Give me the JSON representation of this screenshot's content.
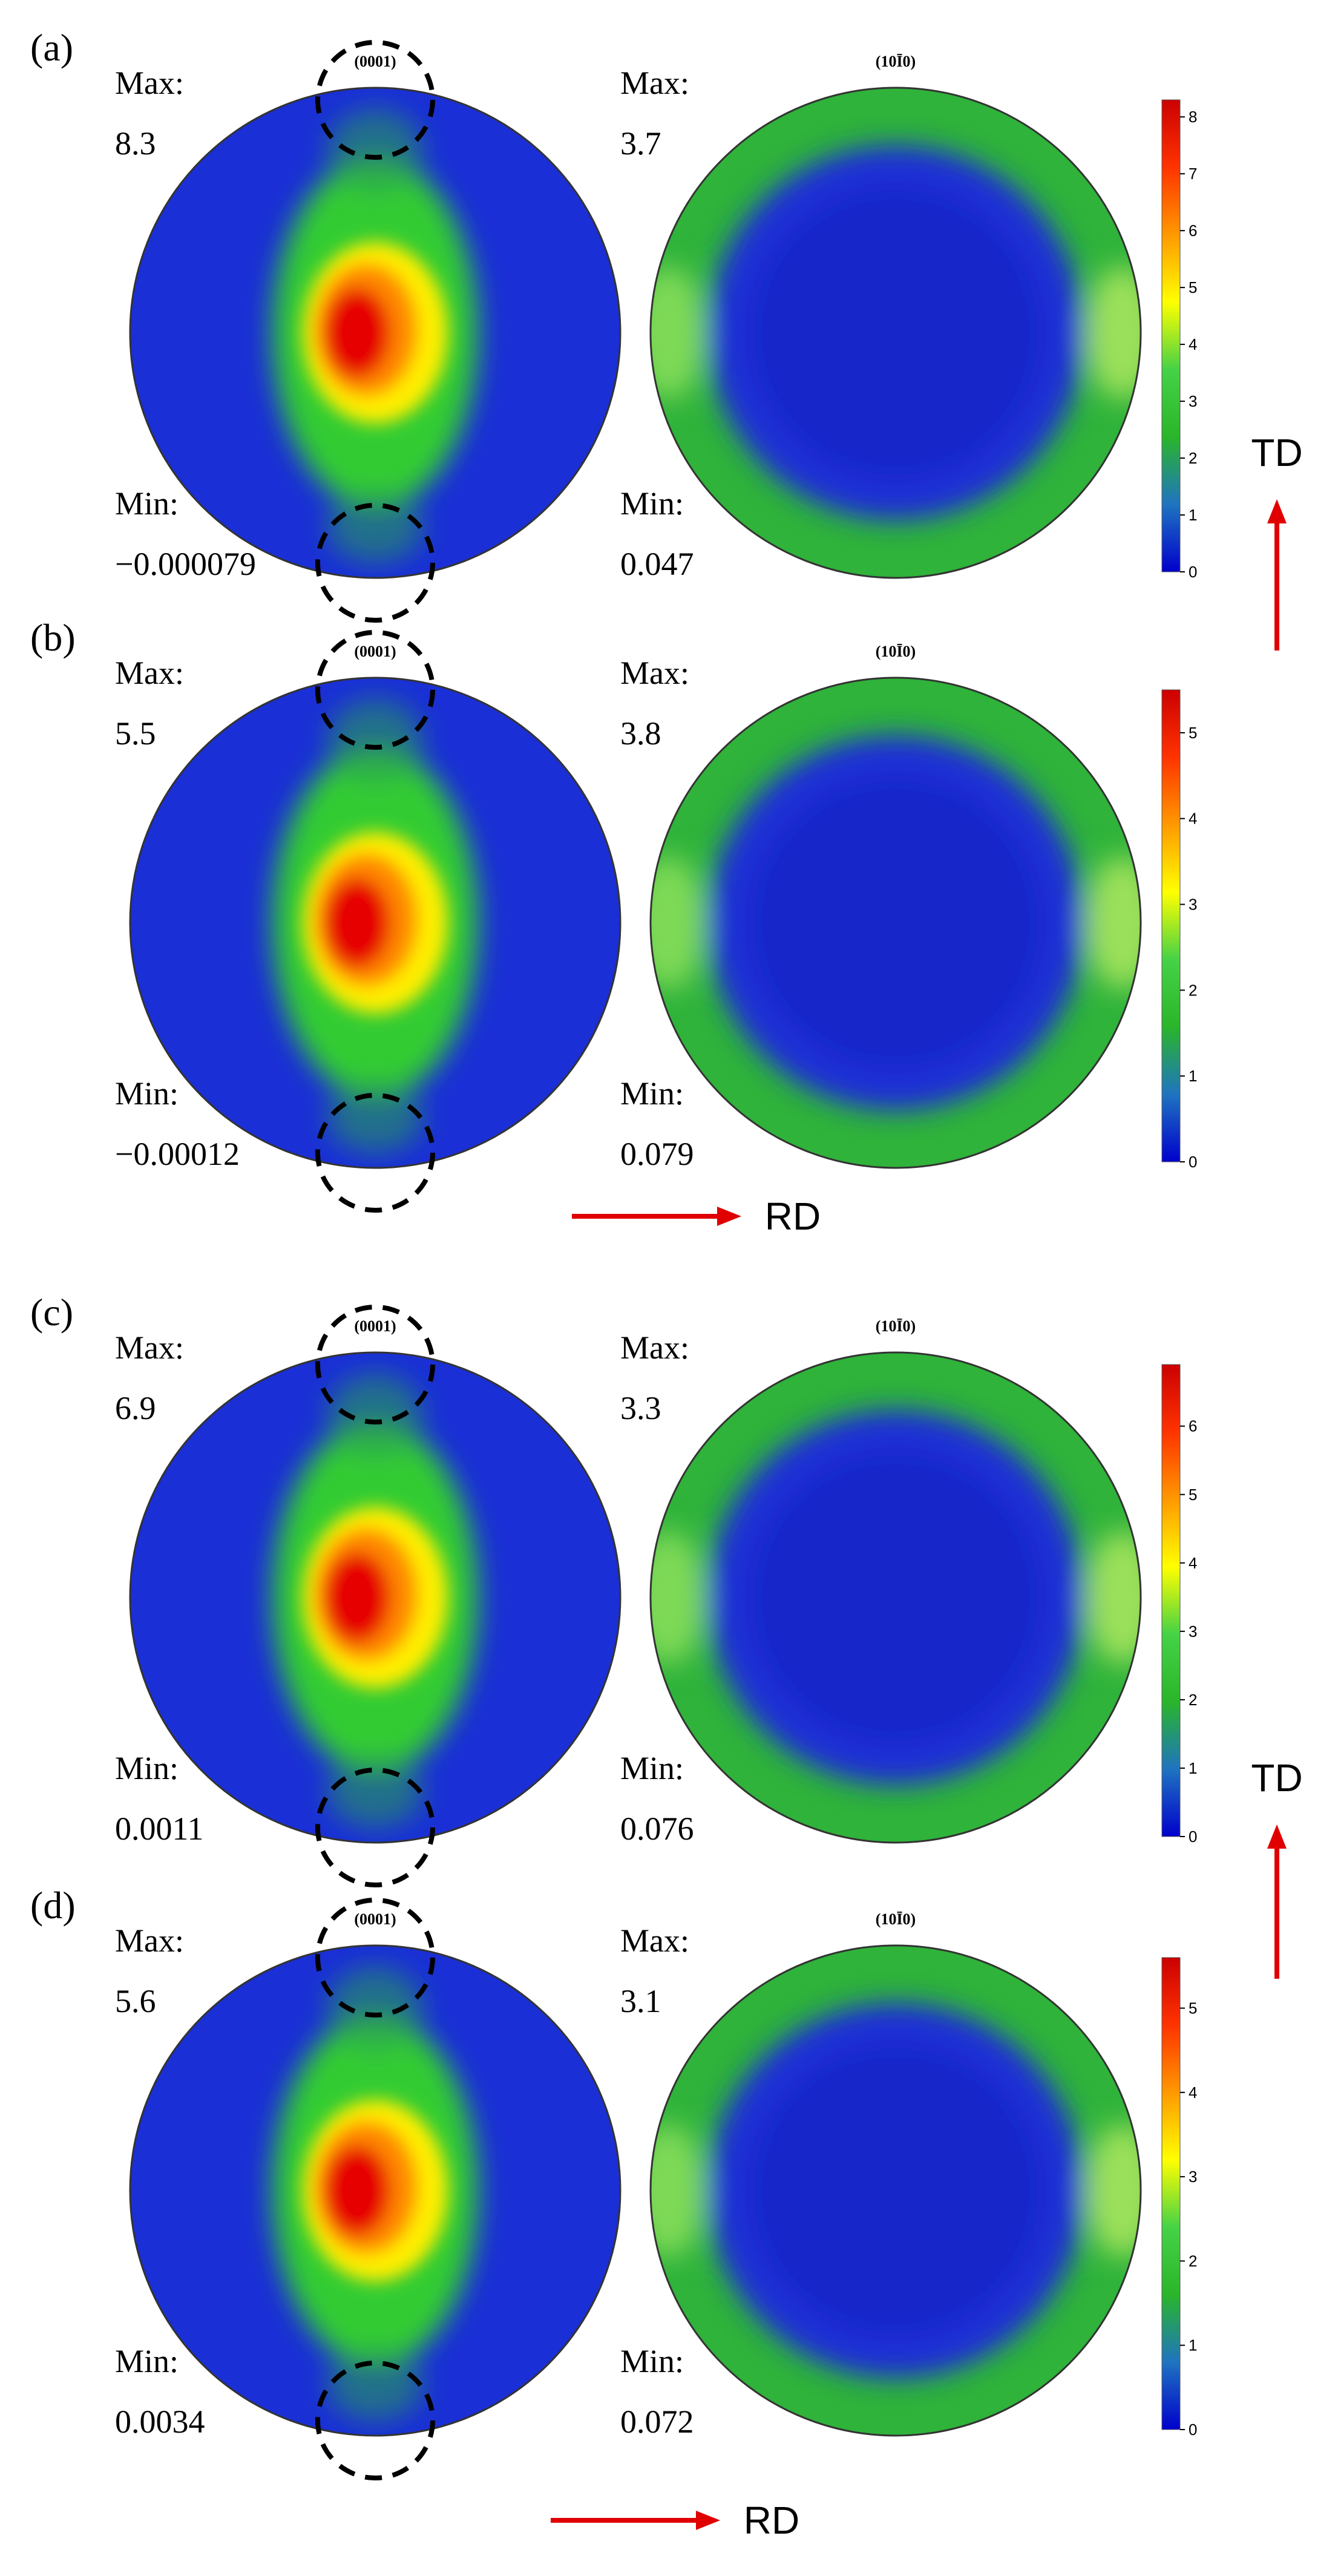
{
  "chart_data": {
    "type": "heatmap",
    "panels": [
      {
        "label": "(a)",
        "figures": [
          {
            "title": "(0001)",
            "max_label": "Max:",
            "max": "8.3",
            "min_label": "Min:",
            "min": "−0.000079"
          },
          {
            "title": "(10Ī0)",
            "max_label": "Max:",
            "max": "3.7",
            "min_label": "Min:",
            "min": "0.047"
          }
        ],
        "colorbar": {
          "range": [
            0,
            8.3
          ],
          "ticks": [
            "0",
            "1",
            "2",
            "3",
            "4",
            "5",
            "6",
            "7",
            "8"
          ]
        }
      },
      {
        "label": "(b)",
        "figures": [
          {
            "title": "(0001)",
            "max_label": "Max:",
            "max": "5.5",
            "min_label": "Min:",
            "min": "−0.00012"
          },
          {
            "title": "(10Ī0)",
            "max_label": "Max:",
            "max": "3.8",
            "min_label": "Min:",
            "min": "0.079"
          }
        ],
        "colorbar": {
          "range": [
            0,
            5.5
          ],
          "ticks": [
            "0",
            "1",
            "2",
            "3",
            "4",
            "5"
          ]
        }
      },
      {
        "label": "(c)",
        "figures": [
          {
            "title": "(0001)",
            "max_label": "Max:",
            "max": "6.9",
            "min_label": "Min:",
            "min": "0.0011"
          },
          {
            "title": "(10Ī0)",
            "max_label": "Max:",
            "max": "3.3",
            "min_label": "Min:",
            "min": "0.076"
          }
        ],
        "colorbar": {
          "range": [
            0,
            6.9
          ],
          "ticks": [
            "0",
            "1",
            "2",
            "3",
            "4",
            "5",
            "6"
          ]
        }
      },
      {
        "label": "(d)",
        "figures": [
          {
            "title": "(0001)",
            "max_label": "Max:",
            "max": "5.6",
            "min_label": "Min:",
            "min": "0.0034"
          },
          {
            "title": "(10Ī0)",
            "max_label": "Max:",
            "max": "3.1",
            "min_label": "Min:",
            "min": "0.072"
          }
        ],
        "colorbar": {
          "range": [
            0,
            5.6
          ],
          "ticks": [
            "0",
            "1",
            "2",
            "3",
            "4",
            "5"
          ]
        }
      }
    ],
    "directions": {
      "vertical": "TD",
      "horizontal": "RD"
    },
    "colormap": [
      "#0000cc",
      "#1f74c0",
      "#2ab52a",
      "#46d246",
      "#ffff00",
      "#ff9900",
      "#ff3300",
      "#cc0000"
    ],
    "annotation": "dashed circles mark top and bottom of (0001) pole figures"
  }
}
